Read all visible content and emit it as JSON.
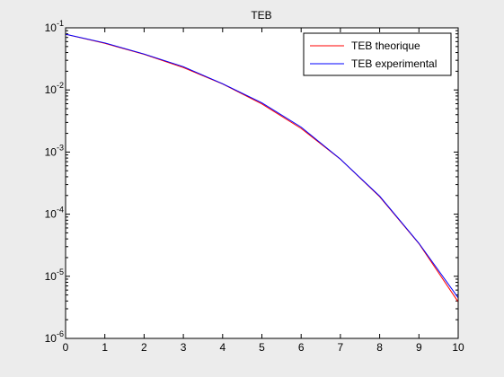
{
  "chart_data": {
    "type": "line",
    "title": "TEB",
    "xlabel": "",
    "ylabel": "",
    "xlim": [
      0,
      10
    ],
    "ylim": [
      1e-06,
      0.1
    ],
    "yscale": "log",
    "grid": false,
    "legend_position": "top-right",
    "x_ticks": [
      "0",
      "1",
      "2",
      "3",
      "4",
      "5",
      "6",
      "7",
      "8",
      "9",
      "10"
    ],
    "y_ticks": [
      {
        "base": "10",
        "exp": "-6"
      },
      {
        "base": "10",
        "exp": "-5"
      },
      {
        "base": "10",
        "exp": "-4"
      },
      {
        "base": "10",
        "exp": "-3"
      },
      {
        "base": "10",
        "exp": "-2"
      },
      {
        "base": "10",
        "exp": "-1"
      }
    ],
    "x": [
      0,
      1,
      2,
      3,
      4,
      5,
      6,
      7,
      8,
      9,
      10
    ],
    "series": [
      {
        "name": "TEB theorique",
        "color": "#ff0000",
        "values": [
          0.0786,
          0.0563,
          0.0375,
          0.0229,
          0.0125,
          0.00595,
          0.0024,
          0.00077,
          0.000191,
          3.36e-05,
          3.87e-06
        ]
      },
      {
        "name": "TEB experimental",
        "color": "#0000ff",
        "values": [
          0.079,
          0.0572,
          0.0378,
          0.0237,
          0.0126,
          0.0062,
          0.00252,
          0.00077,
          0.000195,
          3.4e-05,
          4.5e-06
        ]
      }
    ]
  }
}
